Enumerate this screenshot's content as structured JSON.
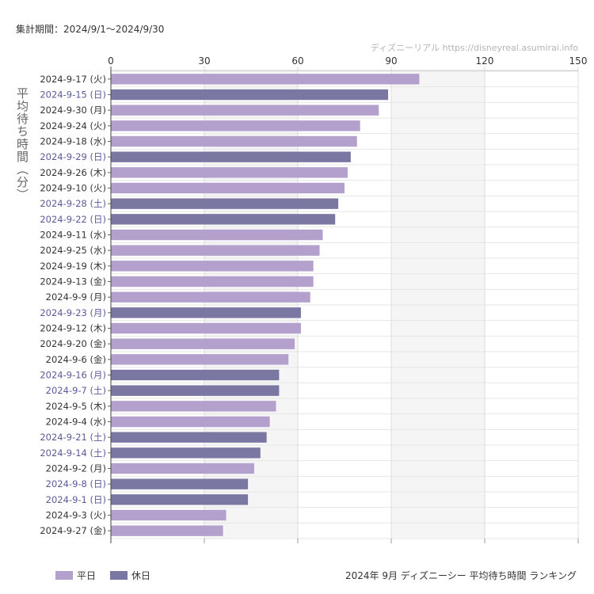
{
  "header": {
    "period": "集計期間：2024/9/1〜2024/9/30",
    "watermark": "ディズニーリアル https://disneyreal.asumirai.info"
  },
  "legend": {
    "weekday": "平日",
    "holiday": "休日"
  },
  "caption": "2024年 9月 ディズニーシー 平均待ち時間 ランキング",
  "colors": {
    "weekday": "#b3a0cc",
    "holiday": "#7b77a3",
    "holiday_label": "#5a5a9a",
    "band": "#f5f5f5"
  },
  "chart_data": {
    "type": "bar",
    "orientation": "horizontal",
    "title": "2024年 9月 ディズニーシー 平均待ち時間 ランキング",
    "xlabel": "",
    "ylabel": "平均待ち時間（分）",
    "xlim": [
      0,
      150
    ],
    "xticks": [
      0,
      30,
      60,
      90,
      120,
      150
    ],
    "grid": true,
    "legend_position": "bottom-left",
    "categories": [
      "2024-9-17 (火)",
      "2024-9-15 (日)",
      "2024-9-30 (月)",
      "2024-9-24 (火)",
      "2024-9-18 (水)",
      "2024-9-29 (日)",
      "2024-9-26 (木)",
      "2024-9-10 (火)",
      "2024-9-28 (土)",
      "2024-9-22 (日)",
      "2024-9-11 (水)",
      "2024-9-25 (水)",
      "2024-9-19 (木)",
      "2024-9-13 (金)",
      "2024-9-9 (月)",
      "2024-9-23 (月)",
      "2024-9-12 (木)",
      "2024-9-20 (金)",
      "2024-9-6 (金)",
      "2024-9-16 (月)",
      "2024-9-7 (土)",
      "2024-9-5 (木)",
      "2024-9-4 (水)",
      "2024-9-21 (土)",
      "2024-9-14 (土)",
      "2024-9-2 (月)",
      "2024-9-8 (日)",
      "2024-9-1 (日)",
      "2024-9-3 (火)",
      "2024-9-27 (金)"
    ],
    "values": [
      99,
      89,
      86,
      80,
      79,
      77,
      76,
      75,
      73,
      72,
      68,
      67,
      65,
      65,
      64,
      61,
      61,
      59,
      57,
      54,
      54,
      53,
      51,
      50,
      48,
      46,
      44,
      44,
      37,
      36
    ],
    "day_type": [
      "weekday",
      "holiday",
      "weekday",
      "weekday",
      "weekday",
      "holiday",
      "weekday",
      "weekday",
      "holiday",
      "holiday",
      "weekday",
      "weekday",
      "weekday",
      "weekday",
      "weekday",
      "holiday",
      "weekday",
      "weekday",
      "weekday",
      "holiday",
      "holiday",
      "weekday",
      "weekday",
      "holiday",
      "holiday",
      "weekday",
      "holiday",
      "holiday",
      "weekday",
      "weekday"
    ]
  }
}
